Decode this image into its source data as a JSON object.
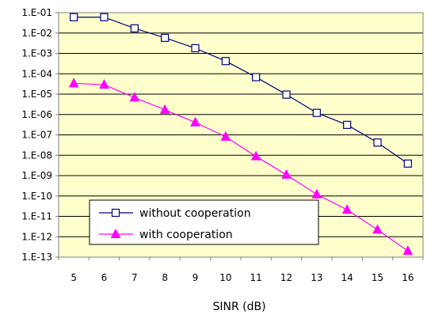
{
  "chart_data": {
    "type": "line",
    "title": "",
    "xlabel": "SINR (dB)",
    "ylabel": "",
    "x": [
      5,
      6,
      7,
      8,
      9,
      10,
      11,
      12,
      13,
      14,
      15,
      16
    ],
    "y_scale": "log",
    "ylim": [
      1e-13,
      0.1
    ],
    "y_tick_values": [
      0.1,
      0.01,
      0.001,
      0.0001,
      1e-05,
      1e-06,
      1e-07,
      1e-08,
      1e-09,
      1e-10,
      1e-11,
      1e-12,
      1e-13
    ],
    "y_tick_labels": [
      "1.E-01",
      "1.E-02",
      "1.E-03",
      "1.E-04",
      "1.E-05",
      "1.E-06",
      "1.E-07",
      "1.E-08",
      "1.E-09",
      "1.E-10",
      "1.E-11",
      "1.E-12",
      "1.E-13"
    ],
    "x_tick_labels": [
      "5",
      "6",
      "7",
      "8",
      "9",
      "10",
      "11",
      "12",
      "13",
      "14",
      "15",
      "16"
    ],
    "grid": "horizontal",
    "plot_background": "#ffffcc",
    "legend_position": "bottom-left",
    "series": [
      {
        "name": "without cooperation",
        "color": "#000080",
        "marker": "square",
        "values": [
          0.06,
          0.06,
          0.017,
          0.0058,
          0.0018,
          0.00042,
          6.8e-05,
          9.5e-06,
          1.2e-06,
          3.1e-07,
          4.2e-08,
          3.9e-09
        ]
      },
      {
        "name": "with cooperation",
        "color": "#ff00ff",
        "marker": "triangle",
        "values": [
          3.4e-05,
          2.9e-05,
          6.8e-06,
          1.7e-06,
          4.1e-07,
          8.1e-08,
          8.8e-09,
          1.1e-09,
          1.2e-10,
          2.1e-11,
          2.2e-12,
          2e-13
        ]
      }
    ]
  }
}
